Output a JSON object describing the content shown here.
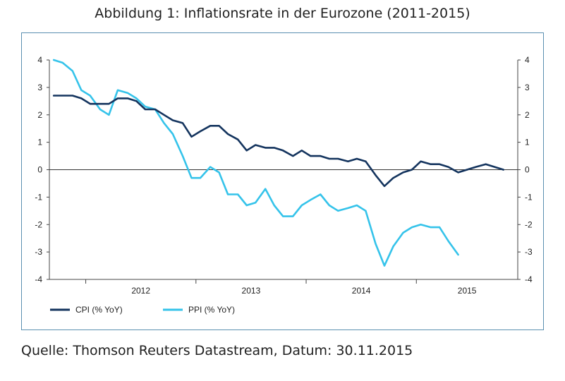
{
  "title": "Abbildung 1: Inflationsrate in der Eurozone (2011-2015)",
  "source": "Quelle: Thomson Reuters Datastream, Datum: 30.11.2015",
  "colors": {
    "cpi": "#14345e",
    "ppi": "#35c3ea",
    "axis": "#444444",
    "zero": "#333333"
  },
  "chart_data": {
    "type": "line",
    "title": "Abbildung 1: Inflationsrate in der Eurozone (2011-2015)",
    "xlabel": "",
    "ylabel": "",
    "ylim": [
      -4,
      4
    ],
    "yticks": [
      4,
      3,
      2,
      1,
      0,
      -1,
      -2,
      -3,
      -4
    ],
    "year_labels": [
      "2012",
      "2013",
      "2014",
      "2015"
    ],
    "legend": "bottom-left",
    "grid": false,
    "x_start": 2011.67,
    "x_end": 2015.92,
    "series": [
      {
        "name": "CPI (% YoY)",
        "key": "cpi",
        "x": [
          2011.71,
          2011.79,
          2011.88,
          2011.96,
          2012.04,
          2012.13,
          2012.21,
          2012.29,
          2012.38,
          2012.46,
          2012.54,
          2012.63,
          2012.71,
          2012.79,
          2012.88,
          2012.96,
          2013.04,
          2013.13,
          2013.21,
          2013.29,
          2013.38,
          2013.46,
          2013.54,
          2013.63,
          2013.71,
          2013.79,
          2013.88,
          2013.96,
          2014.04,
          2014.13,
          2014.21,
          2014.29,
          2014.38,
          2014.46,
          2014.54,
          2014.63,
          2014.71,
          2014.79,
          2014.88,
          2014.96,
          2015.04,
          2015.13,
          2015.21,
          2015.29,
          2015.38,
          2015.46,
          2015.54,
          2015.63,
          2015.71,
          2015.79
        ],
        "y": [
          2.7,
          2.7,
          2.7,
          2.6,
          2.4,
          2.4,
          2.4,
          2.6,
          2.6,
          2.5,
          2.2,
          2.2,
          2.0,
          1.8,
          1.7,
          1.2,
          1.4,
          1.6,
          1.6,
          1.3,
          1.1,
          0.7,
          0.9,
          0.8,
          0.8,
          0.7,
          0.5,
          0.7,
          0.5,
          0.5,
          0.4,
          0.4,
          0.3,
          0.4,
          0.3,
          -0.2,
          -0.6,
          -0.3,
          -0.1,
          0.0,
          0.3,
          0.2,
          0.2,
          0.1,
          -0.1,
          0.0,
          0.1,
          0.2,
          0.1,
          0.0
        ]
      },
      {
        "name": "PPI (% YoY)",
        "key": "ppi",
        "x": [
          2011.71,
          2011.79,
          2011.88,
          2011.96,
          2012.04,
          2012.13,
          2012.21,
          2012.29,
          2012.38,
          2012.46,
          2012.54,
          2012.63,
          2012.71,
          2012.79,
          2012.88,
          2012.96,
          2013.04,
          2013.13,
          2013.21,
          2013.29,
          2013.38,
          2013.46,
          2013.54,
          2013.63,
          2013.71,
          2013.79,
          2013.88,
          2013.96,
          2014.04,
          2014.13,
          2014.21,
          2014.29,
          2014.38,
          2014.46,
          2014.54,
          2014.63,
          2014.71,
          2014.79,
          2014.88,
          2014.96,
          2015.04,
          2015.13,
          2015.21,
          2015.29,
          2015.38
        ],
        "y": [
          4.0,
          3.9,
          3.6,
          2.9,
          2.7,
          2.2,
          2.0,
          2.9,
          2.8,
          2.6,
          2.3,
          2.2,
          1.7,
          1.3,
          0.5,
          -0.3,
          -0.3,
          0.1,
          -0.1,
          -0.9,
          -0.9,
          -1.3,
          -1.2,
          -0.7,
          -1.3,
          -1.7,
          -1.7,
          -1.3,
          -1.1,
          -0.9,
          -1.3,
          -1.5,
          -1.4,
          -1.3,
          -1.5,
          -2.7,
          -3.5,
          -2.8,
          -2.3,
          -2.1,
          -2.0,
          -2.1,
          -2.1,
          -2.6,
          -3.1
        ]
      }
    ]
  }
}
